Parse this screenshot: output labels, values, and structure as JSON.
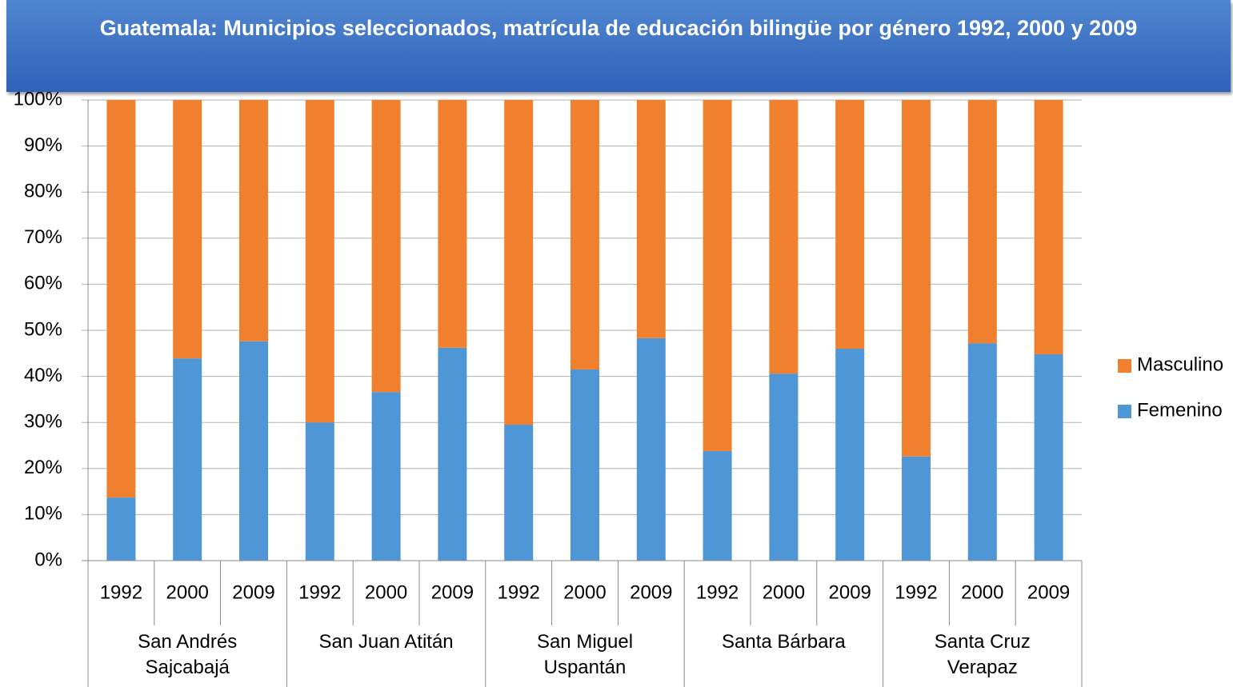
{
  "chart_data": {
    "type": "stacked_bar",
    "title": "Guatemala: Municipios seleccionados, matrícula de educación bilingüe por género 1992, 2000 y 2009",
    "categories": [
      "1992",
      "2000",
      "2009",
      "1992",
      "2000",
      "2009",
      "1992",
      "2000",
      "2009",
      "1992",
      "2000",
      "2009",
      "1992",
      "2000",
      "2009"
    ],
    "groups": [
      "San Andrés Sajcabajá",
      "San Juan Atitán",
      "San Miguel Uspantán",
      "Santa Bárbara",
      "Santa Cruz Verapaz"
    ],
    "series": [
      {
        "name": "Femenino",
        "color": "#4f96d6",
        "values": [
          13.7,
          43.9,
          47.6,
          30.0,
          36.6,
          46.2,
          29.5,
          41.5,
          48.3,
          23.8,
          40.6,
          46.0,
          22.6,
          47.2,
          44.8
        ]
      },
      {
        "name": "Masculino",
        "color": "#f07f2e",
        "values": [
          86.3,
          56.1,
          52.4,
          70.0,
          63.4,
          53.8,
          70.5,
          58.5,
          51.7,
          76.2,
          59.4,
          54.0,
          77.4,
          52.8,
          55.2
        ]
      }
    ],
    "ylim": [
      0,
      100
    ],
    "yticks": [
      {
        "value": 0,
        "label": "0%"
      },
      {
        "value": 10,
        "label": "10%"
      },
      {
        "value": 20,
        "label": "20%"
      },
      {
        "value": 30,
        "label": "30%"
      },
      {
        "value": 40,
        "label": "40%"
      },
      {
        "value": 50,
        "label": "50%"
      },
      {
        "value": 60,
        "label": "60%"
      },
      {
        "value": 70,
        "label": "70%"
      },
      {
        "value": 80,
        "label": "80%"
      },
      {
        "value": 90,
        "label": "90%"
      },
      {
        "value": 100,
        "label": "100%"
      }
    ],
    "grid": true,
    "legend": "right"
  }
}
